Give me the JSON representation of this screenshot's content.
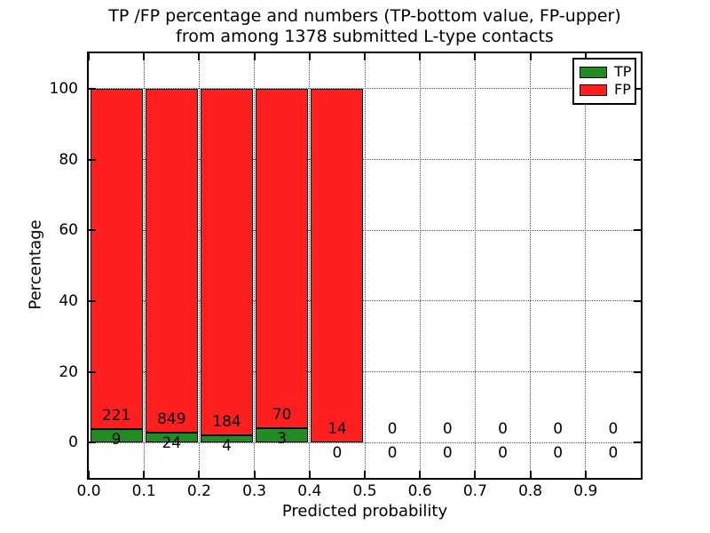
{
  "figure": {
    "title_line1": "TP /FP percentage and numbers (TP-bottom value, FP-upper)",
    "title_line2": "from among 1378 submitted L-type contacts",
    "xlabel": "Predicted probability",
    "ylabel": "Percentage"
  },
  "chart_data": {
    "type": "bar",
    "stacked": true,
    "normalized_per_bin": "each bin scaled to 100%: TP% = TP/(TP+FP)*100, FP% = remainder",
    "title": "TP /FP percentage and numbers (TP-bottom value, FP-upper) from among 1378 submitted L-type contacts",
    "xlabel": "Predicted probability",
    "ylabel": "Percentage",
    "xlim": [
      0.0,
      1.0
    ],
    "ylim": [
      -10,
      110
    ],
    "x_tick_labels": [
      "0.0",
      "0.1",
      "0.2",
      "0.3",
      "0.4",
      "0.5",
      "0.6",
      "0.7",
      "0.8",
      "0.9"
    ],
    "y_tick_values": [
      0,
      20,
      40,
      60,
      80,
      100
    ],
    "grid": "dotted",
    "legend_position": "upper right",
    "bin_width": 0.1,
    "bin_starts": [
      0.0,
      0.1,
      0.2,
      0.3,
      0.4,
      0.5,
      0.6,
      0.7,
      0.8,
      0.9
    ],
    "series": [
      {
        "name": "TP",
        "color": "#228b22",
        "values": [
          9,
          24,
          4,
          3,
          0,
          0,
          0,
          0,
          0,
          0
        ]
      },
      {
        "name": "FP",
        "color": "#ff1f1f",
        "values": [
          221,
          849,
          184,
          70,
          14,
          0,
          0,
          0,
          0,
          0
        ]
      }
    ],
    "colors": {
      "tp_green": "#228b22",
      "fp_red": "#ff1f1f",
      "grid": "#555555",
      "axes": "#000000"
    }
  }
}
